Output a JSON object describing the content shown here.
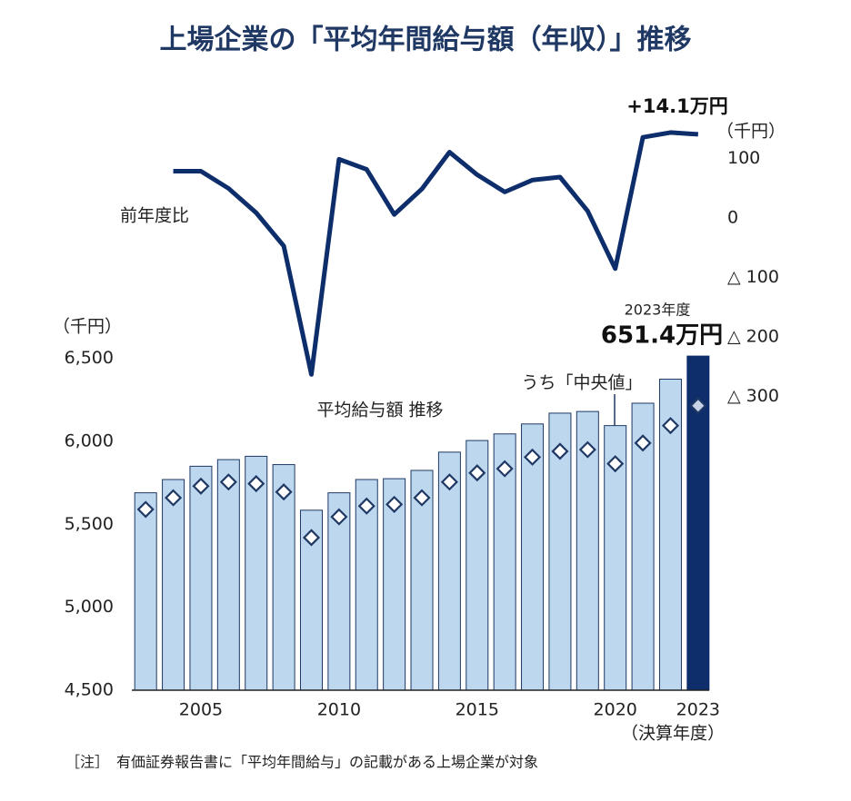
{
  "chart_data": {
    "type": "bar",
    "title": "上場企業の「平均年間給与額（年収）」推移",
    "x": [
      2003,
      2004,
      2005,
      2006,
      2007,
      2008,
      2009,
      2010,
      2011,
      2012,
      2013,
      2014,
      2015,
      2016,
      2017,
      2018,
      2019,
      2020,
      2021,
      2022,
      2023
    ],
    "xlim": [
      2002.5,
      2023.4
    ],
    "xticks": [
      2005,
      2010,
      2015,
      2020,
      2023
    ],
    "x_axis_label": "（決算年度）",
    "y_unit": "（千円）",
    "y2_unit": "（千円）",
    "ylim": [
      4500,
      6520
    ],
    "yticks": [
      {
        "value": 4500,
        "label": "4,500"
      },
      {
        "value": 5000,
        "label": "5,000"
      },
      {
        "value": 5500,
        "label": "5,500"
      },
      {
        "value": 6000,
        "label": "6,000"
      },
      {
        "value": 6500,
        "label": "6,500"
      }
    ],
    "y2lim": [
      -310,
      150
    ],
    "y2ticks": [
      100,
      0,
      {
        "value": -100,
        "label": "△ 100"
      },
      {
        "value": -200,
        "label": "△ 200"
      },
      {
        "value": -300,
        "label": "△ 300"
      }
    ],
    "series": [
      {
        "name": "平均給与額 推移",
        "type": "bar",
        "color": "#bdd7ee",
        "edge_color": "#1f3864",
        "highlight_color": "#0d2d6b",
        "values": [
          5690,
          5770,
          5850,
          5890,
          5910,
          5860,
          5585,
          5690,
          5770,
          5775,
          5825,
          5935,
          6005,
          6045,
          6105,
          6170,
          6180,
          6095,
          6230,
          6375,
          6514
        ]
      },
      {
        "name": "うち「中央値」",
        "type": "scatter",
        "color": "#1f3864",
        "values": [
          5590,
          5660,
          5730,
          5755,
          5745,
          5695,
          5420,
          5545,
          5610,
          5620,
          5660,
          5755,
          5810,
          5835,
          5905,
          5940,
          5950,
          5865,
          5990,
          6095,
          6215
        ]
      },
      {
        "name": "前年度比",
        "type": "line",
        "axis": "y2",
        "color": "#0d2d6b",
        "values": [
          null,
          79,
          79,
          50,
          9,
          -47,
          -263,
          99,
          82,
          6,
          49,
          111,
          73,
          44,
          64,
          69,
          12,
          -85,
          136,
          144,
          141
        ]
      }
    ],
    "annotations": [
      "+14.1万円",
      "2023年度",
      "651.4万円"
    ],
    "note": "［注］　有価証券報告書に「平均年間給与」の記載がある上場企業が対象"
  }
}
